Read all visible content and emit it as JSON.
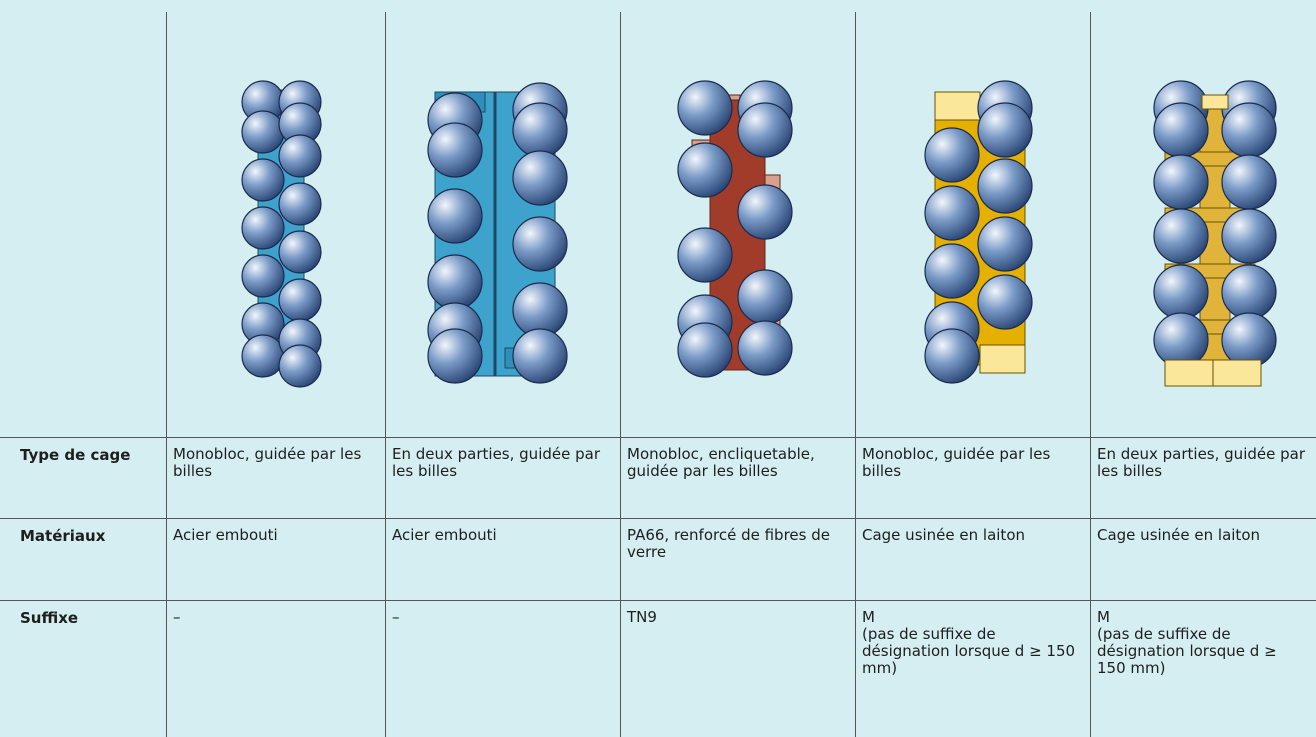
{
  "table": {
    "rows": [
      {
        "label": "Type de cage",
        "cells": [
          "Monobloc, guidée par les billes",
          "En deux parties, guidée par les billes",
          "Monobloc, encliquetable, guidée par les billes",
          "Monobloc, guidée par les billes",
          "En deux parties, guidée par les billes"
        ]
      },
      {
        "label": "Matériaux",
        "cells": [
          "Acier embouti",
          "Acier embouti",
          "PA66, renforcé de fibres de verre",
          "Cage usinée en laiton",
          "Cage usinée en laiton"
        ]
      },
      {
        "label": "Suffixe",
        "cells": [
          "–",
          "–",
          "TN9",
          "M\n(pas de suffixe de désignation lorsque d ≥ 150 mm)",
          "M\n(pas de suffixe de désignation lorsque d ≥ 150 mm)"
        ]
      }
    ]
  }
}
